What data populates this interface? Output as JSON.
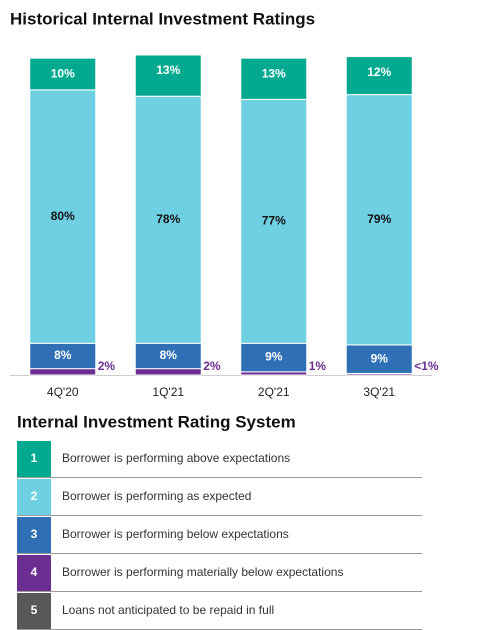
{
  "chart_data": {
    "type": "stacked_bar",
    "title": "Historical Internal Investment Ratings",
    "categories": [
      "4Q'20",
      "1Q'21",
      "2Q'21",
      "3Q'21"
    ],
    "series": [
      {
        "color": "#00a98f",
        "values": [
          10,
          13,
          13,
          12
        ],
        "value_labels": [
          "10%",
          "13%",
          "13%",
          "12%"
        ]
      },
      {
        "color": "#6fd0e3",
        "values": [
          80,
          78,
          77,
          79
        ],
        "value_labels": [
          "80%",
          "78%",
          "77%",
          "79%"
        ]
      },
      {
        "color": "#2f6fb5",
        "values": [
          8,
          8,
          9,
          9
        ],
        "value_labels": [
          "8%",
          "8%",
          "9%",
          "9%"
        ]
      },
      {
        "color": "#6b2d8f",
        "values": [
          2,
          2,
          1,
          0.5
        ],
        "value_labels": [
          "2%",
          "2%",
          "1%",
          "<1%"
        ]
      }
    ],
    "legend_title": "Internal Investment Rating System",
    "legend_items": [
      {
        "number": "1",
        "label": "Borrower is performing above expectations",
        "color": "#00a98f"
      },
      {
        "number": "2",
        "label": "Borrower is performing as expected",
        "color": "#6fd0e3"
      },
      {
        "number": "3",
        "label": "Borrower is performing below expectations",
        "color": "#2f6fb5"
      },
      {
        "number": "4",
        "label": "Borrower is performing materially below expectations",
        "color": "#6b2d8f"
      },
      {
        "number": "5",
        "label": "Loans not anticipated to be repaid in full",
        "color": "#58585a"
      }
    ]
  }
}
